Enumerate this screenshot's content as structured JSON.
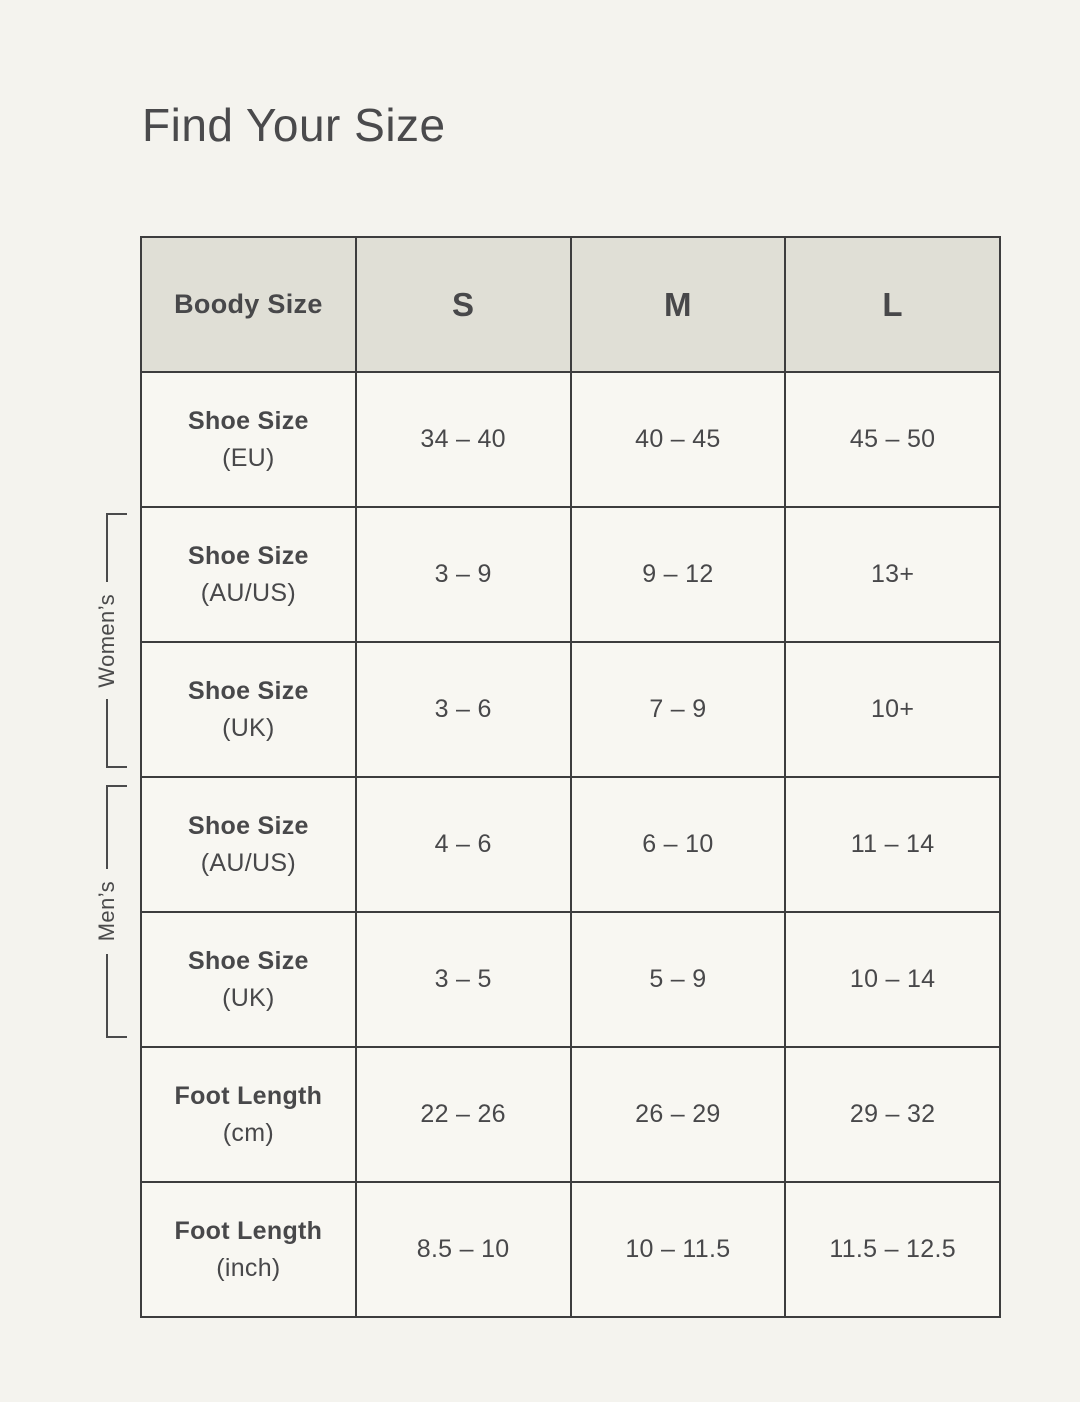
{
  "title": "Find Your Size",
  "groups": [
    {
      "label": "Women’s"
    },
    {
      "label": "Men’s"
    }
  ],
  "table": {
    "header": [
      "Boody Size",
      "S",
      "M",
      "L"
    ],
    "rows": [
      {
        "label": "Shoe Size",
        "unit": "(EU)",
        "values": [
          "34 – 40",
          "40 – 45",
          "45 – 50"
        ]
      },
      {
        "label": "Shoe Size",
        "unit": "(AU/US)",
        "values": [
          "3 – 9",
          "9 – 12",
          "13+"
        ]
      },
      {
        "label": "Shoe Size",
        "unit": "(UK)",
        "values": [
          "3 – 6",
          "7 – 9",
          "10+"
        ]
      },
      {
        "label": "Shoe Size",
        "unit": "(AU/US)",
        "values": [
          "4 – 6",
          "6 – 10",
          "11 – 14"
        ]
      },
      {
        "label": "Shoe Size",
        "unit": "(UK)",
        "values": [
          "3 – 5",
          "5 – 9",
          "10 – 14"
        ]
      },
      {
        "label": "Foot Length",
        "unit": "(cm)",
        "values": [
          "22 – 26",
          "26 – 29",
          "29 – 32"
        ]
      },
      {
        "label": "Foot Length",
        "unit": "(inch)",
        "values": [
          "8.5 – 10",
          "10 – 11.5",
          "11.5 – 12.5"
        ]
      }
    ]
  },
  "colors": {
    "page_background": "#f4f3ee",
    "cell_background": "#f8f7f2",
    "header_background": "#e0dfd6",
    "border": "#3d3d3e",
    "text": "#48484a"
  }
}
